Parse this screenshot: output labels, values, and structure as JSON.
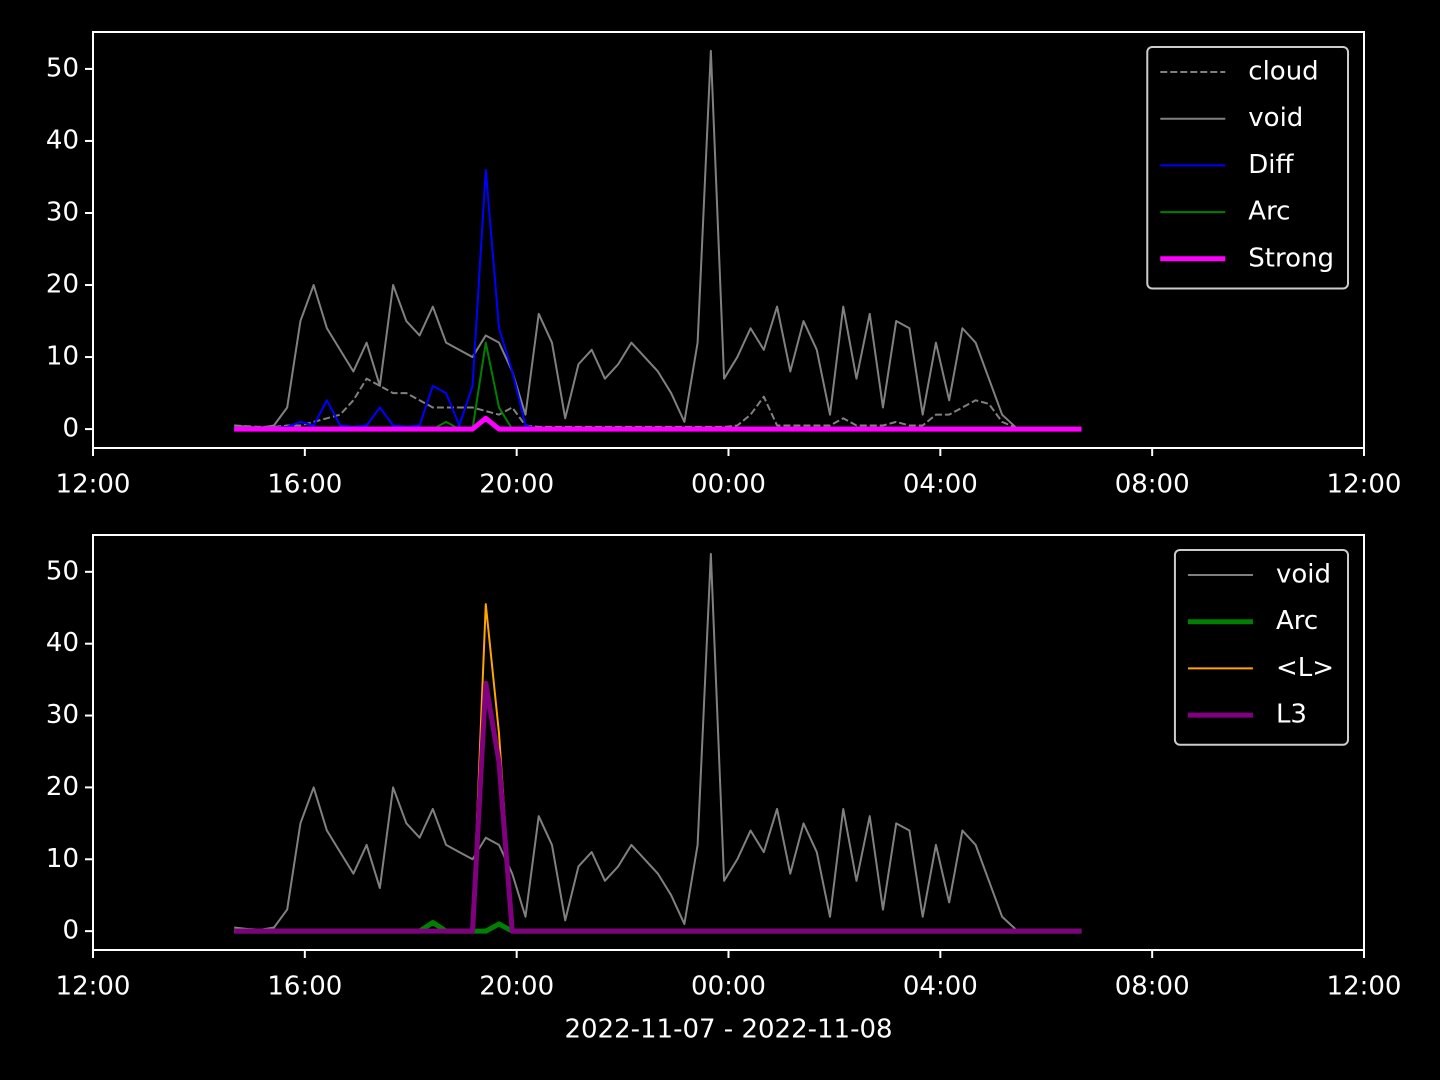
{
  "chart_data": [
    {
      "type": "line",
      "x": [
        "2022-11-07 14:40",
        "2022-11-07 14:55",
        "2022-11-07 15:10",
        "2022-11-07 15:25",
        "2022-11-07 15:40",
        "2022-11-07 15:55",
        "2022-11-07 16:10",
        "2022-11-07 16:25",
        "2022-11-07 16:40",
        "2022-11-07 16:55",
        "2022-11-07 17:10",
        "2022-11-07 17:25",
        "2022-11-07 17:40",
        "2022-11-07 17:55",
        "2022-11-07 18:10",
        "2022-11-07 18:25",
        "2022-11-07 18:40",
        "2022-11-07 18:55",
        "2022-11-07 19:10",
        "2022-11-07 19:25",
        "2022-11-07 19:40",
        "2022-11-07 19:55",
        "2022-11-07 20:10",
        "2022-11-07 20:25",
        "2022-11-07 20:40",
        "2022-11-07 20:55",
        "2022-11-07 21:10",
        "2022-11-07 21:25",
        "2022-11-07 21:40",
        "2022-11-07 21:55",
        "2022-11-07 22:10",
        "2022-11-07 22:25",
        "2022-11-07 22:40",
        "2022-11-07 22:55",
        "2022-11-07 23:10",
        "2022-11-07 23:25",
        "2022-11-07 23:40",
        "2022-11-07 23:55",
        "2022-11-08 00:10",
        "2022-11-08 00:25",
        "2022-11-08 00:40",
        "2022-11-08 00:55",
        "2022-11-08 01:10",
        "2022-11-08 01:25",
        "2022-11-08 01:40",
        "2022-11-08 01:55",
        "2022-11-08 02:10",
        "2022-11-08 02:25",
        "2022-11-08 02:40",
        "2022-11-08 02:55",
        "2022-11-08 03:10",
        "2022-11-08 03:25",
        "2022-11-08 03:40",
        "2022-11-08 03:55",
        "2022-11-08 04:10",
        "2022-11-08 04:25",
        "2022-11-08 04:40",
        "2022-11-08 04:55",
        "2022-11-08 05:10",
        "2022-11-08 05:25",
        "2022-11-08 05:40",
        "2022-11-08 05:55",
        "2022-11-08 06:10",
        "2022-11-08 06:25",
        "2022-11-08 06:40"
      ],
      "series": [
        {
          "name": "cloud",
          "color": "#808080",
          "linestyle": "dashed",
          "linewidth": 2,
          "values": [
            0.5,
            0.4,
            0.3,
            0.3,
            0.5,
            0.5,
            1,
            1.5,
            2,
            4,
            7,
            6,
            5,
            5,
            4,
            3,
            3,
            3,
            3,
            2.5,
            2,
            3,
            0.5,
            0.3,
            0.3,
            0.3,
            0.3,
            0.3,
            0.3,
            0.3,
            0.3,
            0.3,
            0.3,
            0.3,
            0.3,
            0.3,
            0.3,
            0.3,
            0.5,
            2,
            4.5,
            0.5,
            0.5,
            0.5,
            0.5,
            0.5,
            1.5,
            0.5,
            0.5,
            0.5,
            1,
            0.5,
            0.5,
            2,
            2,
            3,
            4,
            3.5,
            1,
            0.2,
            null,
            null,
            null,
            null,
            null
          ]
        },
        {
          "name": "void",
          "color": "#808080",
          "linestyle": "solid",
          "linewidth": 2,
          "values": [
            0.5,
            0.3,
            0.2,
            0.5,
            3,
            15,
            20,
            14,
            11,
            8,
            12,
            6,
            20,
            15,
            13,
            17,
            12,
            11,
            10,
            13,
            12,
            8,
            2,
            16,
            12,
            1.5,
            9,
            11,
            7,
            9,
            12,
            10,
            8,
            5,
            1,
            12,
            52.5,
            7,
            10,
            14,
            11,
            17,
            8,
            15,
            11,
            2,
            17,
            7,
            16,
            3,
            15,
            14,
            2,
            12,
            4,
            14,
            12,
            7,
            2,
            0.3,
            null,
            null,
            null,
            null,
            null
          ]
        },
        {
          "name": "Diff",
          "color": "#0000ff",
          "linestyle": "solid",
          "linewidth": 2,
          "values": [
            0.2,
            0.2,
            0.2,
            0.2,
            0.3,
            1,
            0.5,
            4,
            0.5,
            0.3,
            0.5,
            3,
            0.5,
            0.3,
            0.5,
            6,
            5,
            0.5,
            6,
            36,
            14,
            8,
            0.5,
            0,
            0,
            0,
            0,
            0,
            0,
            0,
            0,
            0,
            0,
            0,
            0,
            0,
            0,
            0,
            0,
            0,
            0,
            0,
            0,
            0,
            0,
            0,
            0,
            0,
            0,
            0,
            0,
            0,
            0,
            0,
            0,
            0,
            0,
            0,
            0,
            0,
            0,
            0,
            0,
            0,
            0
          ]
        },
        {
          "name": "Arc",
          "color": "#008000",
          "linestyle": "solid",
          "linewidth": 2,
          "values": [
            0,
            0,
            0,
            0,
            0,
            0,
            0,
            0,
            0,
            0,
            0,
            0,
            0,
            0,
            0,
            0,
            1,
            0,
            0,
            12,
            3,
            0,
            0,
            0,
            0,
            0,
            0,
            0,
            0,
            0,
            0,
            0,
            0,
            0,
            0,
            0,
            0,
            0,
            0,
            0,
            0,
            0,
            0,
            0,
            0,
            0,
            0,
            0,
            0,
            0,
            0,
            0,
            0,
            0,
            0,
            0,
            0,
            0,
            0,
            0,
            0,
            0,
            0,
            0,
            0
          ]
        },
        {
          "name": "Strong",
          "color": "#ff00ff",
          "linestyle": "solid",
          "linewidth": 5,
          "values": [
            0,
            0,
            0,
            0,
            0,
            0,
            0,
            0,
            0,
            0,
            0,
            0,
            0,
            0,
            0,
            0,
            0,
            0,
            0,
            1.5,
            0,
            0,
            0,
            0,
            0,
            0,
            0,
            0,
            0,
            0,
            0,
            0,
            0,
            0,
            0,
            0,
            0,
            0,
            0,
            0,
            0,
            0,
            0,
            0,
            0,
            0,
            0,
            0,
            0,
            0,
            0,
            0,
            0,
            0,
            0,
            0,
            0,
            0,
            0,
            0,
            0,
            0,
            0,
            0,
            0
          ]
        }
      ],
      "xlim": [
        "2022-11-07 12:00",
        "2022-11-08 12:00"
      ],
      "xticks": [
        {
          "value": "2022-11-07 12:00",
          "label": "12:00"
        },
        {
          "value": "2022-11-07 16:00",
          "label": "16:00"
        },
        {
          "value": "2022-11-07 20:00",
          "label": "20:00"
        },
        {
          "value": "2022-11-08 00:00",
          "label": "00:00"
        },
        {
          "value": "2022-11-08 04:00",
          "label": "04:00"
        },
        {
          "value": "2022-11-08 08:00",
          "label": "08:00"
        },
        {
          "value": "2022-11-08 12:00",
          "label": "12:00"
        }
      ],
      "ylim": [
        -2.625,
        55.125
      ],
      "yticks": [
        0,
        10,
        20,
        30,
        40,
        50
      ],
      "legend": "upper right"
    },
    {
      "type": "line",
      "x": [
        "2022-11-07 14:40",
        "2022-11-07 14:55",
        "2022-11-07 15:10",
        "2022-11-07 15:25",
        "2022-11-07 15:40",
        "2022-11-07 15:55",
        "2022-11-07 16:10",
        "2022-11-07 16:25",
        "2022-11-07 16:40",
        "2022-11-07 16:55",
        "2022-11-07 17:10",
        "2022-11-07 17:25",
        "2022-11-07 17:40",
        "2022-11-07 17:55",
        "2022-11-07 18:10",
        "2022-11-07 18:25",
        "2022-11-07 18:40",
        "2022-11-07 18:55",
        "2022-11-07 19:10",
        "2022-11-07 19:25",
        "2022-11-07 19:40",
        "2022-11-07 19:55",
        "2022-11-07 20:10",
        "2022-11-07 20:25",
        "2022-11-07 20:40",
        "2022-11-07 20:55",
        "2022-11-07 21:10",
        "2022-11-07 21:25",
        "2022-11-07 21:40",
        "2022-11-07 21:55",
        "2022-11-07 22:10",
        "2022-11-07 22:25",
        "2022-11-07 22:40",
        "2022-11-07 22:55",
        "2022-11-07 23:10",
        "2022-11-07 23:25",
        "2022-11-07 23:40",
        "2022-11-07 23:55",
        "2022-11-08 00:10",
        "2022-11-08 00:25",
        "2022-11-08 00:40",
        "2022-11-08 00:55",
        "2022-11-08 01:10",
        "2022-11-08 01:25",
        "2022-11-08 01:40",
        "2022-11-08 01:55",
        "2022-11-08 02:10",
        "2022-11-08 02:25",
        "2022-11-08 02:40",
        "2022-11-08 02:55",
        "2022-11-08 03:10",
        "2022-11-08 03:25",
        "2022-11-08 03:40",
        "2022-11-08 03:55",
        "2022-11-08 04:10",
        "2022-11-08 04:25",
        "2022-11-08 04:40",
        "2022-11-08 04:55",
        "2022-11-08 05:10",
        "2022-11-08 05:25",
        "2022-11-08 05:40",
        "2022-11-08 05:55",
        "2022-11-08 06:10",
        "2022-11-08 06:25",
        "2022-11-08 06:40"
      ],
      "series": [
        {
          "name": "void",
          "color": "#808080",
          "linestyle": "solid",
          "linewidth": 2,
          "values": [
            0.5,
            0.3,
            0.2,
            0.5,
            3,
            15,
            20,
            14,
            11,
            8,
            12,
            6,
            20,
            15,
            13,
            17,
            12,
            11,
            10,
            13,
            12,
            8,
            2,
            16,
            12,
            1.5,
            9,
            11,
            7,
            9,
            12,
            10,
            8,
            5,
            1,
            12,
            52.5,
            7,
            10,
            14,
            11,
            17,
            8,
            15,
            11,
            2,
            17,
            7,
            16,
            3,
            15,
            14,
            2,
            12,
            4,
            14,
            12,
            7,
            2,
            0.3,
            null,
            null,
            null,
            null,
            null
          ]
        },
        {
          "name": "Arc",
          "color": "#008000",
          "linestyle": "solid",
          "linewidth": 5,
          "values": [
            0,
            0,
            0,
            0,
            0,
            0,
            0,
            0,
            0,
            0,
            0,
            0,
            0,
            0,
            0,
            1.2,
            0,
            0,
            0,
            0,
            1,
            0,
            0,
            0,
            0,
            0,
            0,
            0,
            0,
            0,
            0,
            0,
            0,
            0,
            0,
            0,
            0,
            0,
            0,
            0,
            0,
            0,
            0,
            0,
            0,
            0,
            0,
            0,
            0,
            0,
            0,
            0,
            0,
            0,
            0,
            0,
            0,
            0,
            0,
            0,
            0,
            0,
            0,
            0,
            0
          ]
        },
        {
          "name": "<L>",
          "color": "#ffa500",
          "linestyle": "solid",
          "linewidth": 2,
          "values": [
            0,
            0,
            0,
            0,
            0,
            0,
            0,
            0,
            0,
            0,
            0,
            0,
            0,
            0,
            0,
            0,
            0,
            0,
            0,
            45.5,
            27.5,
            0,
            0,
            0,
            0,
            0,
            0,
            0,
            0,
            0,
            0,
            0,
            0,
            0,
            0,
            0,
            0,
            0,
            0,
            0,
            0,
            0,
            0,
            0,
            0,
            0,
            0,
            0,
            0,
            0,
            0,
            0,
            0,
            0,
            0,
            0,
            0,
            0,
            0,
            0,
            0,
            0,
            0,
            0,
            0
          ]
        },
        {
          "name": "L3",
          "color": "#800080",
          "linestyle": "solid",
          "linewidth": 5,
          "values": [
            0,
            0,
            0,
            0,
            0,
            0,
            0,
            0,
            0,
            0,
            0,
            0,
            0,
            0,
            0,
            0,
            0,
            0,
            0,
            34.5,
            23.5,
            0,
            0,
            0,
            0,
            0,
            0,
            0,
            0,
            0,
            0,
            0,
            0,
            0,
            0,
            0,
            0,
            0,
            0,
            0,
            0,
            0,
            0,
            0,
            0,
            0,
            0,
            0,
            0,
            0,
            0,
            0,
            0,
            0,
            0,
            0,
            0,
            0,
            0,
            0,
            0,
            0,
            0,
            0,
            0
          ]
        }
      ],
      "xlim": [
        "2022-11-07 12:00",
        "2022-11-08 12:00"
      ],
      "xticks": [
        {
          "value": "2022-11-07 12:00",
          "label": "12:00"
        },
        {
          "value": "2022-11-07 16:00",
          "label": "16:00"
        },
        {
          "value": "2022-11-07 20:00",
          "label": "20:00"
        },
        {
          "value": "2022-11-08 00:00",
          "label": "00:00"
        },
        {
          "value": "2022-11-08 04:00",
          "label": "04:00"
        },
        {
          "value": "2022-11-08 08:00",
          "label": "08:00"
        },
        {
          "value": "2022-11-08 12:00",
          "label": "12:00"
        }
      ],
      "ylim": [
        -2.625,
        55.125
      ],
      "yticks": [
        0,
        10,
        20,
        30,
        40,
        50
      ],
      "xlabel": "2022-11-07 - 2022-11-08",
      "legend": "upper right"
    }
  ]
}
